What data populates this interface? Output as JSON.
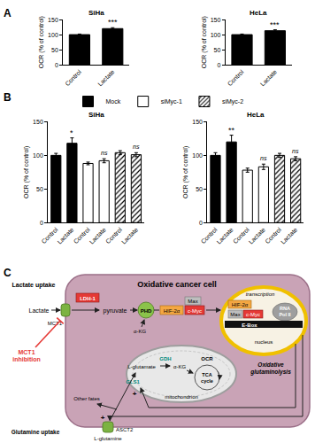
{
  "panel_labels": [
    "A",
    "B"
  ],
  "chart_data": [
    {
      "type": "bar",
      "title": "SiHa",
      "y_label": "OCR (% of control)",
      "categories": [
        "Control",
        "Lactate"
      ],
      "values": [
        100,
        120
      ],
      "errors": [
        2,
        3
      ],
      "significance": [
        null,
        "***"
      ],
      "color": "#000000",
      "ylim": [
        0,
        150
      ],
      "yticks": [
        0,
        50,
        100,
        150
      ]
    },
    {
      "type": "bar",
      "title": "HeLa",
      "y_label": "OCR (% of control)",
      "categories": [
        "Control",
        "Lactate"
      ],
      "values": [
        100,
        113
      ],
      "errors": [
        2,
        3
      ],
      "significance": [
        null,
        "***"
      ],
      "color": "#000000",
      "ylim": [
        0,
        150
      ],
      "yticks": [
        0,
        50,
        100,
        150
      ]
    },
    {
      "type": "bar",
      "title": "SiHa",
      "y_label": "OCR (% of control)",
      "categories": [
        "Control",
        "Lactate",
        "Control",
        "Lactate",
        "Control",
        "Lactate"
      ],
      "series": [
        {
          "name": "Mock",
          "color": "#000000",
          "values": [
            100,
            118,
            null,
            null,
            null,
            null
          ],
          "errors": [
            3,
            8,
            null,
            null,
            null,
            null
          ]
        },
        {
          "name": "siMyc-1",
          "color": "#ffffff",
          "values": [
            null,
            null,
            88,
            92,
            null,
            null
          ],
          "errors": [
            null,
            null,
            2,
            3,
            null,
            null
          ]
        },
        {
          "name": "siMyc-2",
          "color": "#ffffff",
          "marker": "hatched",
          "values": [
            null,
            null,
            null,
            null,
            104,
            101
          ],
          "errors": [
            null,
            null,
            null,
            null,
            3,
            3
          ]
        }
      ],
      "significance": [
        null,
        "*",
        null,
        "ns",
        null,
        "ns"
      ],
      "legend": "top",
      "ylim": [
        0,
        150
      ],
      "yticks": [
        0,
        50,
        100,
        150
      ]
    },
    {
      "type": "bar",
      "title": "HeLa",
      "y_label": "OCR (% of control)",
      "categories": [
        "Control",
        "Lactate",
        "Control",
        "Lactate",
        "Control",
        "Lactate"
      ],
      "series": [
        {
          "name": "Mock",
          "color": "#000000",
          "values": [
            100,
            120,
            null,
            null,
            null,
            null
          ],
          "errors": [
            4,
            10,
            null,
            null,
            null,
            null
          ]
        },
        {
          "name": "siMyc-1",
          "color": "#ffffff",
          "values": [
            null,
            null,
            78,
            83,
            null,
            null
          ],
          "errors": [
            null,
            null,
            3,
            4,
            null,
            null
          ]
        },
        {
          "name": "siMyc-2",
          "color": "#ffffff",
          "marker": "hatched",
          "values": [
            null,
            null,
            null,
            null,
            100,
            95
          ],
          "errors": [
            null,
            null,
            null,
            null,
            3,
            3
          ]
        }
      ],
      "significance": [
        null,
        "**",
        null,
        "ns",
        null,
        "ns"
      ],
      "legend": "top",
      "ylim": [
        0,
        150
      ],
      "yticks": [
        0,
        50,
        100,
        150
      ]
    }
  ],
  "diagram": {
    "panel_label": "C",
    "cell": "Oxidative cancer cell",
    "lactate_uptake": "Lactate uptake",
    "ldh": "LDH-1",
    "lactate": "Lactate",
    "mct1": "MCT1",
    "inhibition": [
      "MCT1",
      "inhibition"
    ],
    "pyruvate": "pyruvate",
    "phd": "PHD",
    "hif_cyto": "HIF-2α",
    "max_cyto": "Max",
    "myc_cyto": "c-Myc",
    "akg_cyto": "α-KG",
    "transcription": "transcription",
    "hif_nuc": "HIF-2α",
    "max_nuc": "Max",
    "myc_nuc": "c-Myc",
    "rna_pol": [
      "RNA",
      "Pol II"
    ],
    "ebox": "E-Box",
    "nucleus": "nucleus",
    "glutamate": "L-glutamate",
    "gdh": "GDH",
    "akg_mito": "α-KG",
    "gls1": "GLS1",
    "ocr": "OCR",
    "tca": [
      "TCA",
      "cycle"
    ],
    "glutaminolysis": [
      "Oxidative",
      "glutaminolysis"
    ],
    "mitochondrion": "mitochondrion",
    "other_fates": "Other fates",
    "asct2": "ASCT2",
    "glutamine_uptake": "Glutamine uptake",
    "glutamine": "L-glutamine",
    "plus": "+"
  }
}
